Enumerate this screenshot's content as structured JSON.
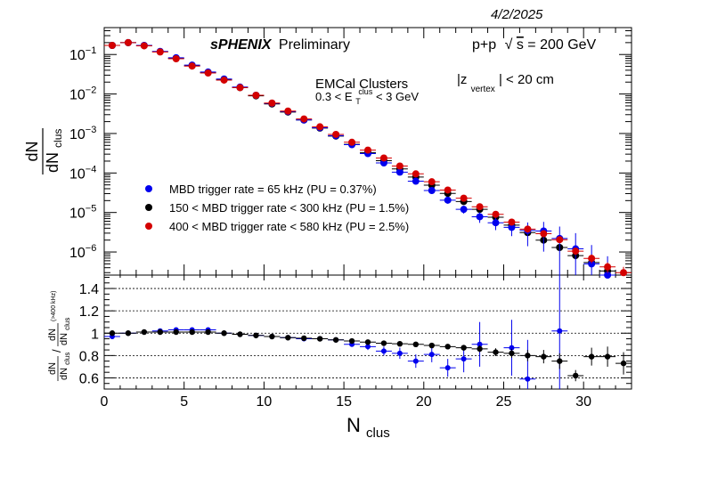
{
  "date": "4/2/2025",
  "header": {
    "collab": "sPHENIX",
    "status": "Preliminary",
    "system": "p+p",
    "sqrt_symbol": "√",
    "sqrt_arg": "s",
    "energy": " = 200 GeV"
  },
  "annotations": {
    "emcal": "EMCal Clusters",
    "et_lo": "0.3 < E",
    "et_sub": "T",
    "et_sup": "clus",
    "et_hi": " < 3 GeV",
    "z_bar1": "|z",
    "z_sub": "vertex",
    "z_rest": "| < 20 cm"
  },
  "legend": [
    {
      "label": "MBD trigger rate = 65 kHz (PU = 0.37%)",
      "color": "#0000ee"
    },
    {
      "label": "150 < MBD trigger rate < 300 kHz (PU = 1.5%)",
      "color": "#000000"
    },
    {
      "label": "400 < MBD trigger rate < 580 kHz (PU = 2.5%)",
      "color": "#d40000"
    }
  ],
  "axes": {
    "x_title_main": "N",
    "x_title_sub": "clus",
    "top_y_num": "dN",
    "top_y_den_main": "dN",
    "top_y_den_sub": "clus",
    "ratio_num_num": "dN",
    "ratio_num_den_main": "dN",
    "ratio_num_den_sub": "clus",
    "ratio_slash": "/",
    "ratio_den_num": "dN",
    "ratio_den_den_main": "dN",
    "ratio_den_den_sub": "clus",
    "ratio_den_sup": "(>400 kHz)"
  },
  "chart_data": [
    {
      "type": "scatter",
      "panel": "main",
      "ylog": true,
      "xlim": [
        0,
        33
      ],
      "ylim": [
        2.6e-07,
        0.48
      ],
      "xticks": [
        0,
        5,
        10,
        15,
        20,
        25,
        30
      ],
      "xtick_labels": [
        "0",
        "5",
        "10",
        "15",
        "20",
        "25",
        "30"
      ],
      "yticks": [
        1e-06,
        1e-05,
        0.0001,
        0.001,
        0.01,
        0.1
      ],
      "ytick_labels": [
        [
          "10",
          "−6"
        ],
        [
          "10",
          "−5"
        ],
        [
          "10",
          "−4"
        ],
        [
          "10",
          "−3"
        ],
        [
          "10",
          "−2"
        ],
        [
          "10",
          "−1"
        ]
      ],
      "x": [
        0.5,
        1.5,
        2.5,
        3.5,
        4.5,
        5.5,
        6.5,
        7.5,
        8.5,
        9.5,
        10.5,
        11.5,
        12.5,
        13.5,
        14.5,
        15.5,
        16.5,
        17.5,
        18.5,
        19.5,
        20.5,
        21.5,
        22.5,
        23.5,
        24.5,
        25.5,
        26.5,
        27.5,
        28.5,
        29.5,
        30.5,
        31.5,
        32.5
      ],
      "series": [
        {
          "name": "MBD trigger rate = 65 kHz (PU = 0.37%)",
          "color": "#0000ee",
          "values": [
            0.17,
            0.2,
            0.17,
            0.12,
            0.083,
            0.054,
            0.036,
            0.024,
            0.015,
            0.0093,
            0.0058,
            0.0036,
            0.0022,
            0.0014,
            0.00088,
            0.00052,
            0.00031,
            0.00018,
            0.000105,
            6.2e-05,
            3.6e-05,
            2.05e-05,
            1.2e-05,
            7.8e-06,
            5.5e-06,
            4.2e-06,
            3.5e-06,
            3.4e-06,
            2.2e-06,
            1.2e-06,
            5e-07,
            2.6e-07,
            null
          ],
          "yerr_rel": [
            0.01,
            0.01,
            0.01,
            0.01,
            0.01,
            0.01,
            0.01,
            0.01,
            0.02,
            0.02,
            0.02,
            0.02,
            0.03,
            0.03,
            0.04,
            0.05,
            0.06,
            0.08,
            0.1,
            0.12,
            0.15,
            0.18,
            0.22,
            0.3,
            0.35,
            0.4,
            0.6,
            0.7,
            1.0,
            1.5,
            2.0,
            2.0,
            0
          ]
        },
        {
          "name": "150 < MBD trigger rate < 300 kHz (PU = 1.5%)",
          "color": "#000000",
          "values": [
            0.17,
            0.2,
            0.168,
            0.118,
            0.08,
            0.052,
            0.035,
            0.023,
            0.0145,
            0.009,
            0.0056,
            0.0035,
            0.0022,
            0.00137,
            0.00086,
            0.00053,
            0.00033,
            0.000205,
            0.000127,
            7.9e-05,
            4.9e-05,
            3.05e-05,
            1.9e-05,
            1.2e-05,
            7.6e-06,
            4.8e-06,
            3.1e-06,
            2e-06,
            1.3e-06,
            8.1e-07,
            5.4e-07,
            3.3e-07,
            2.2e-07
          ],
          "yerr_rel": [
            0.005,
            0.005,
            0.005,
            0.005,
            0.005,
            0.005,
            0.005,
            0.005,
            0.005,
            0.005,
            0.005,
            0.005,
            0.01,
            0.01,
            0.01,
            0.01,
            0.01,
            0.015,
            0.02,
            0.02,
            0.03,
            0.03,
            0.04,
            0.05,
            0.06,
            0.08,
            0.1,
            0.12,
            0.15,
            0.2,
            0.25,
            0.3,
            0.4
          ]
        },
        {
          "name": "400 < MBD trigger rate < 580 kHz (PU = 2.5%)",
          "color": "#d40000",
          "values": [
            0.17,
            0.2,
            0.166,
            0.116,
            0.078,
            0.051,
            0.034,
            0.0225,
            0.0145,
            0.0093,
            0.0059,
            0.0037,
            0.00234,
            0.00148,
            0.00095,
            0.0006,
            0.00038,
            0.00024,
            0.00015,
            9.5e-05,
            6e-05,
            3.7e-05,
            2.3e-05,
            1.4e-05,
            9e-06,
            5.7e-06,
            3.8e-06,
            2.9e-06,
            2.05e-06,
            1.05e-06,
            6.9e-07,
            4.2e-07,
            3e-07
          ],
          "yerr_rel": [
            0.005,
            0.005,
            0.005,
            0.005,
            0.005,
            0.005,
            0.005,
            0.005,
            0.005,
            0.005,
            0.005,
            0.005,
            0.01,
            0.01,
            0.01,
            0.01,
            0.01,
            0.015,
            0.02,
            0.02,
            0.03,
            0.03,
            0.04,
            0.05,
            0.06,
            0.08,
            0.1,
            0.12,
            0.15,
            0.2,
            0.25,
            0.3,
            0.4
          ]
        }
      ]
    },
    {
      "type": "scatter",
      "panel": "ratio",
      "xlim": [
        0,
        33
      ],
      "ylim": [
        0.5,
        1.52
      ],
      "yticks": [
        0.6,
        0.8,
        1.0,
        1.2,
        1.4
      ],
      "ytick_labels": [
        "0.6",
        "0.8",
        "1",
        "1.2",
        "1.4"
      ],
      "dashed_lines": [
        0.6,
        0.8,
        1.0,
        1.2,
        1.4
      ],
      "x": [
        0.5,
        1.5,
        2.5,
        3.5,
        4.5,
        5.5,
        6.5,
        7.5,
        8.5,
        9.5,
        10.5,
        11.5,
        12.5,
        13.5,
        14.5,
        15.5,
        16.5,
        17.5,
        18.5,
        19.5,
        20.5,
        21.5,
        22.5,
        23.5,
        24.5,
        25.5,
        26.5,
        27.5,
        28.5,
        29.5,
        30.5,
        31.5,
        32.5
      ],
      "series": [
        {
          "name": "MBD trigger rate = 65 kHz (PU = 0.37%)",
          "color": "#0000ee",
          "values": [
            0.97,
            1.0,
            1.01,
            1.02,
            1.03,
            1.03,
            1.03,
            1.0,
            0.99,
            0.98,
            0.97,
            0.96,
            0.95,
            0.95,
            0.94,
            0.9,
            0.88,
            0.84,
            0.82,
            0.75,
            0.81,
            0.69,
            0.77,
            0.9,
            null,
            0.87,
            0.59,
            null,
            1.02,
            null,
            null,
            null,
            null
          ],
          "yerr": [
            0.01,
            0.01,
            0.01,
            0.01,
            0.01,
            0.01,
            0.01,
            0.01,
            0.01,
            0.01,
            0.01,
            0.01,
            0.01,
            0.015,
            0.02,
            0.02,
            0.03,
            0.04,
            0.05,
            0.06,
            0.07,
            0.08,
            0.12,
            0.2,
            0,
            0.25,
            0.35,
            0,
            0.6,
            0,
            0,
            0,
            0
          ]
        },
        {
          "name": "150 < MBD trigger rate < 300 kHz (PU = 1.5%)",
          "color": "#000000",
          "values": [
            1.0,
            1.0,
            1.01,
            1.01,
            1.01,
            1.01,
            1.01,
            1.0,
            0.99,
            0.98,
            0.97,
            0.96,
            0.955,
            0.95,
            0.94,
            0.93,
            0.92,
            0.91,
            0.905,
            0.9,
            0.89,
            0.88,
            0.87,
            0.86,
            0.83,
            0.82,
            0.8,
            0.79,
            0.75,
            0.62,
            0.79,
            0.79,
            0.73
          ],
          "yerr": [
            0.005,
            0.005,
            0.005,
            0.005,
            0.005,
            0.005,
            0.005,
            0.005,
            0.005,
            0.005,
            0.005,
            0.005,
            0.006,
            0.007,
            0.008,
            0.009,
            0.01,
            0.012,
            0.014,
            0.015,
            0.018,
            0.02,
            0.025,
            0.03,
            0.035,
            0.04,
            0.05,
            0.06,
            0.07,
            0.05,
            0.08,
            0.09,
            0.1
          ]
        }
      ]
    }
  ]
}
